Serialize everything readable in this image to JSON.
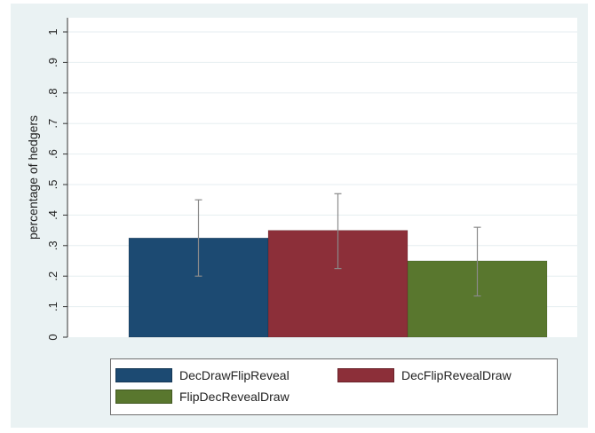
{
  "chart_data": {
    "type": "bar",
    "ylabel": "percentage of hedgers",
    "ylim": [
      0,
      1
    ],
    "yticks": [
      0,
      0.1,
      0.2,
      0.3,
      0.4,
      0.5,
      0.6,
      0.7,
      0.8,
      0.9,
      1
    ],
    "ytick_labels": [
      "0",
      ".1",
      ".2",
      ".3",
      ".4",
      ".5",
      ".6",
      ".7",
      ".8",
      ".9",
      "1"
    ],
    "grid": true,
    "legend_position": "bottom",
    "series": [
      {
        "name": "DecDrawFlipReveal",
        "value": 0.325,
        "err_low": 0.2,
        "err_high": 0.45,
        "color": "#1c4a72"
      },
      {
        "name": "DecFlipRevealDraw",
        "value": 0.35,
        "err_low": 0.225,
        "err_high": 0.47,
        "color": "#8c2f39"
      },
      {
        "name": "FlipDecRevealDraw",
        "value": 0.25,
        "err_low": 0.135,
        "err_high": 0.36,
        "color": "#59772e"
      }
    ]
  }
}
